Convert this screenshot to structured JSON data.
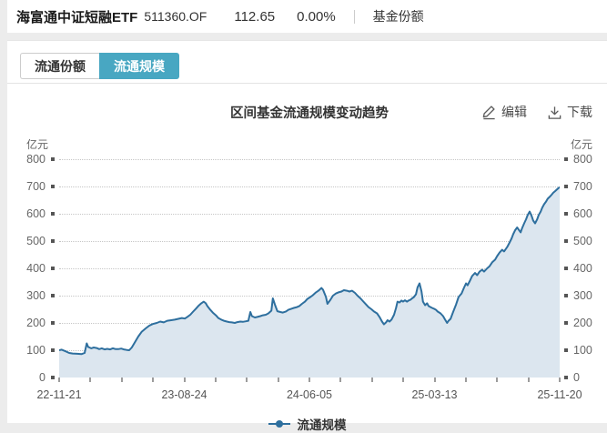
{
  "header": {
    "fund_name": "海富通中证短融ETF",
    "fund_code": "511360.OF",
    "price": "112.65",
    "change_percent": "0.00%",
    "nav_link": "基金份额"
  },
  "tabs": [
    {
      "label": "流通份额",
      "active": false
    },
    {
      "label": "流通规模",
      "active": true
    }
  ],
  "chart": {
    "title": "区间基金流通规模变动趋势",
    "edit_label": "编辑",
    "download_label": "下载",
    "unit_label": "亿元"
  },
  "colors": {
    "accent_tab": "#48a7c2",
    "line": "#2e6f9e",
    "fill": "#dce6ef"
  },
  "chart_data": {
    "type": "area",
    "title": "区间基金流通规模变动趋势",
    "ylabel": "亿元",
    "ylim": [
      0,
      800
    ],
    "y_ticks": [
      0,
      100,
      200,
      300,
      400,
      500,
      600,
      700,
      800
    ],
    "x_tick_labels": [
      "22-11-21",
      "23-08-24",
      "24-06-05",
      "25-03-13",
      "25-11-20"
    ],
    "grid": "dotted-horizontal",
    "legend_position": "bottom",
    "series": [
      {
        "name": "流通规模",
        "points": [
          [
            0.0,
            100
          ],
          [
            0.005,
            102
          ],
          [
            0.013,
            96
          ],
          [
            0.02,
            90
          ],
          [
            0.027,
            88
          ],
          [
            0.036,
            87
          ],
          [
            0.045,
            86
          ],
          [
            0.051,
            90
          ],
          [
            0.055,
            125
          ],
          [
            0.058,
            112
          ],
          [
            0.064,
            107
          ],
          [
            0.069,
            110
          ],
          [
            0.075,
            108
          ],
          [
            0.08,
            104
          ],
          [
            0.085,
            107
          ],
          [
            0.091,
            103
          ],
          [
            0.096,
            105
          ],
          [
            0.102,
            103
          ],
          [
            0.107,
            107
          ],
          [
            0.113,
            104
          ],
          [
            0.118,
            104
          ],
          [
            0.124,
            106
          ],
          [
            0.129,
            103
          ],
          [
            0.135,
            101
          ],
          [
            0.14,
            100
          ],
          [
            0.145,
            110
          ],
          [
            0.151,
            128
          ],
          [
            0.158,
            150
          ],
          [
            0.165,
            168
          ],
          [
            0.173,
            180
          ],
          [
            0.18,
            190
          ],
          [
            0.187,
            196
          ],
          [
            0.195,
            200
          ],
          [
            0.202,
            205
          ],
          [
            0.209,
            202
          ],
          [
            0.216,
            208
          ],
          [
            0.224,
            210
          ],
          [
            0.231,
            212
          ],
          [
            0.238,
            215
          ],
          [
            0.245,
            218
          ],
          [
            0.251,
            216
          ],
          [
            0.256,
            222
          ],
          [
            0.262,
            230
          ],
          [
            0.267,
            240
          ],
          [
            0.273,
            252
          ],
          [
            0.278,
            262
          ],
          [
            0.284,
            272
          ],
          [
            0.289,
            278
          ],
          [
            0.293,
            272
          ],
          [
            0.296,
            262
          ],
          [
            0.302,
            248
          ],
          [
            0.307,
            238
          ],
          [
            0.313,
            228
          ],
          [
            0.318,
            218
          ],
          [
            0.324,
            212
          ],
          [
            0.329,
            208
          ],
          [
            0.335,
            205
          ],
          [
            0.34,
            203
          ],
          [
            0.345,
            202
          ],
          [
            0.351,
            200
          ],
          [
            0.356,
            203
          ],
          [
            0.362,
            205
          ],
          [
            0.367,
            204
          ],
          [
            0.373,
            206
          ],
          [
            0.378,
            208
          ],
          [
            0.382,
            240
          ],
          [
            0.385,
            225
          ],
          [
            0.391,
            220
          ],
          [
            0.396,
            222
          ],
          [
            0.402,
            225
          ],
          [
            0.407,
            228
          ],
          [
            0.413,
            230
          ],
          [
            0.418,
            235
          ],
          [
            0.424,
            245
          ],
          [
            0.427,
            290
          ],
          [
            0.431,
            268
          ],
          [
            0.436,
            243
          ],
          [
            0.442,
            240
          ],
          [
            0.447,
            238
          ],
          [
            0.453,
            242
          ],
          [
            0.458,
            248
          ],
          [
            0.464,
            252
          ],
          [
            0.469,
            255
          ],
          [
            0.475,
            258
          ],
          [
            0.48,
            262
          ],
          [
            0.485,
            270
          ],
          [
            0.491,
            278
          ],
          [
            0.496,
            288
          ],
          [
            0.502,
            295
          ],
          [
            0.507,
            302
          ],
          [
            0.513,
            312
          ],
          [
            0.518,
            318
          ],
          [
            0.524,
            328
          ],
          [
            0.527,
            322
          ],
          [
            0.533,
            295
          ],
          [
            0.536,
            270
          ],
          [
            0.542,
            285
          ],
          [
            0.547,
            300
          ],
          [
            0.553,
            308
          ],
          [
            0.558,
            312
          ],
          [
            0.564,
            315
          ],
          [
            0.569,
            320
          ],
          [
            0.575,
            318
          ],
          [
            0.58,
            315
          ],
          [
            0.585,
            318
          ],
          [
            0.591,
            310
          ],
          [
            0.596,
            300
          ],
          [
            0.602,
            290
          ],
          [
            0.607,
            280
          ],
          [
            0.613,
            268
          ],
          [
            0.618,
            258
          ],
          [
            0.624,
            250
          ],
          [
            0.629,
            242
          ],
          [
            0.635,
            235
          ],
          [
            0.64,
            222
          ],
          [
            0.645,
            205
          ],
          [
            0.649,
            195
          ],
          [
            0.653,
            202
          ],
          [
            0.656,
            210
          ],
          [
            0.66,
            205
          ],
          [
            0.664,
            212
          ],
          [
            0.669,
            230
          ],
          [
            0.673,
            255
          ],
          [
            0.676,
            278
          ],
          [
            0.68,
            275
          ],
          [
            0.684,
            282
          ],
          [
            0.687,
            278
          ],
          [
            0.691,
            283
          ],
          [
            0.695,
            278
          ],
          [
            0.698,
            282
          ],
          [
            0.702,
            285
          ],
          [
            0.705,
            290
          ],
          [
            0.709,
            295
          ],
          [
            0.713,
            305
          ],
          [
            0.716,
            330
          ],
          [
            0.72,
            345
          ],
          [
            0.724,
            315
          ],
          [
            0.727,
            278
          ],
          [
            0.731,
            265
          ],
          [
            0.735,
            272
          ],
          [
            0.738,
            262
          ],
          [
            0.742,
            258
          ],
          [
            0.745,
            255
          ],
          [
            0.749,
            252
          ],
          [
            0.753,
            248
          ],
          [
            0.756,
            242
          ],
          [
            0.762,
            235
          ],
          [
            0.767,
            225
          ],
          [
            0.771,
            212
          ],
          [
            0.775,
            200
          ],
          [
            0.778,
            208
          ],
          [
            0.782,
            215
          ],
          [
            0.787,
            240
          ],
          [
            0.793,
            268
          ],
          [
            0.798,
            295
          ],
          [
            0.804,
            308
          ],
          [
            0.809,
            330
          ],
          [
            0.813,
            345
          ],
          [
            0.816,
            338
          ],
          [
            0.82,
            352
          ],
          [
            0.825,
            372
          ],
          [
            0.831,
            383
          ],
          [
            0.835,
            375
          ],
          [
            0.84,
            388
          ],
          [
            0.845,
            395
          ],
          [
            0.849,
            388
          ],
          [
            0.855,
            400
          ],
          [
            0.86,
            408
          ],
          [
            0.865,
            422
          ],
          [
            0.871,
            432
          ],
          [
            0.875,
            445
          ],
          [
            0.88,
            458
          ],
          [
            0.885,
            468
          ],
          [
            0.889,
            462
          ],
          [
            0.895,
            478
          ],
          [
            0.9,
            495
          ],
          [
            0.904,
            510
          ],
          [
            0.907,
            525
          ],
          [
            0.911,
            540
          ],
          [
            0.915,
            550
          ],
          [
            0.918,
            542
          ],
          [
            0.922,
            532
          ],
          [
            0.925,
            548
          ],
          [
            0.929,
            565
          ],
          [
            0.933,
            580
          ],
          [
            0.936,
            595
          ],
          [
            0.94,
            608
          ],
          [
            0.944,
            592
          ],
          [
            0.947,
            575
          ],
          [
            0.951,
            565
          ],
          [
            0.955,
            580
          ],
          [
            0.958,
            595
          ],
          [
            0.962,
            608
          ],
          [
            0.965,
            622
          ],
          [
            0.969,
            635
          ],
          [
            0.973,
            645
          ],
          [
            0.976,
            655
          ],
          [
            0.98,
            662
          ],
          [
            0.984,
            670
          ],
          [
            0.987,
            677
          ],
          [
            0.991,
            683
          ],
          [
            0.995,
            690
          ],
          [
            1.0,
            698
          ]
        ]
      }
    ]
  }
}
